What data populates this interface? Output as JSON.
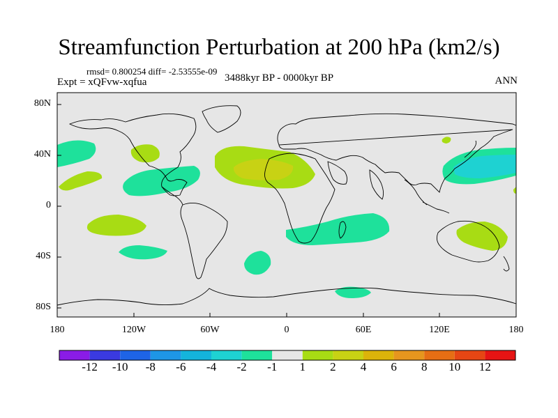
{
  "title": "Streamfunction Perturbation at 200 hPa (km2/s)",
  "stats": "rmsd= 0.800254 diff= -2.53555e-09",
  "experiment": "Expt = xQFvw-xqfua",
  "period": "3488kyr BP - 0000kyr BP",
  "season": "ANN",
  "lat_labels": [
    "80N",
    "40N",
    "0",
    "40S",
    "80S"
  ],
  "lon_labels": [
    "180",
    "120W",
    "60W",
    "0",
    "60E",
    "120E",
    "180"
  ],
  "colorbar": {
    "labels": [
      "-12",
      "-10",
      "-8",
      "-6",
      "-4",
      "-2",
      "-1",
      "1",
      "2",
      "4",
      "6",
      "8",
      "10",
      "12"
    ],
    "colors": [
      "#8a1ce6",
      "#3a3ae0",
      "#1e64e6",
      "#1e96e6",
      "#14b4dc",
      "#1ed2d2",
      "#1ee19b",
      "#e6e6e6",
      "#a8dc14",
      "#c8d214",
      "#dcb40a",
      "#e6961e",
      "#e66e14",
      "#e64614",
      "#e61414"
    ]
  },
  "anomaly_regions": [
    {
      "level": "-1",
      "color": "#1ee19b"
    },
    {
      "level": "-2",
      "color": "#1ed2d2"
    },
    {
      "level": "1",
      "color": "#a8dc14"
    },
    {
      "level": "2",
      "color": "#c8d214"
    }
  ]
}
